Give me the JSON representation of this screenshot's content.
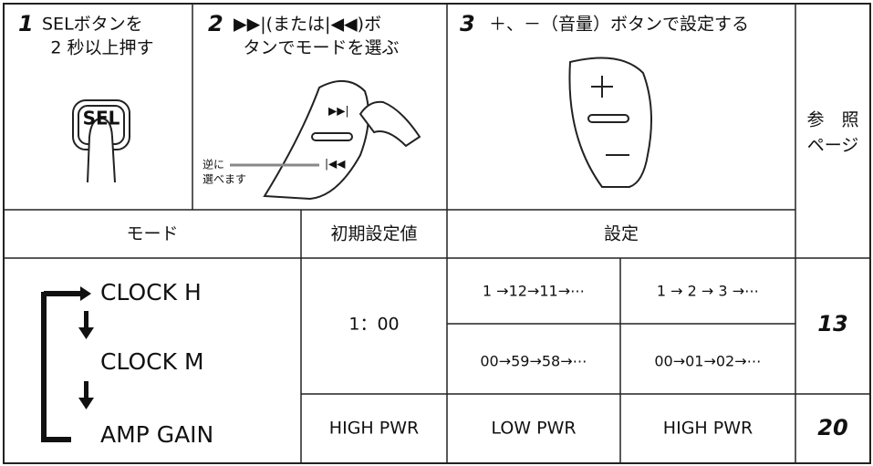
{
  "steps": [
    {
      "number": "1",
      "lines": [
        "SELボタンを",
        "2 秒以上押す"
      ]
    },
    {
      "number": "2",
      "lines": [
        "▶▶|(または|◀◀)ボ",
        "タンでモードを選ぶ"
      ]
    },
    {
      "number": "3",
      "lines": [
        "＋、－（音量）ボタンで設定する"
      ]
    }
  ],
  "illustration": {
    "button_label": "SEL",
    "note_lines": [
      "逆に",
      "選べます"
    ]
  },
  "reference_header": [
    "参　照",
    "ページ"
  ],
  "table": {
    "headers": [
      "モード",
      "初期設定値",
      "設定"
    ],
    "modes": [
      "CLOCK H",
      "CLOCK M",
      "AMP GAIN"
    ],
    "defaults": [
      "1：00",
      "HIGH PWR"
    ],
    "settings": [
      [
        "1 →12→11→⋯",
        "1 → 2 → 3 →⋯"
      ],
      [
        "00→59→58→⋯",
        "00→01→02→⋯"
      ],
      [
        "LOW PWR",
        "HIGH PWR"
      ]
    ],
    "pages": [
      "13",
      "20"
    ]
  }
}
